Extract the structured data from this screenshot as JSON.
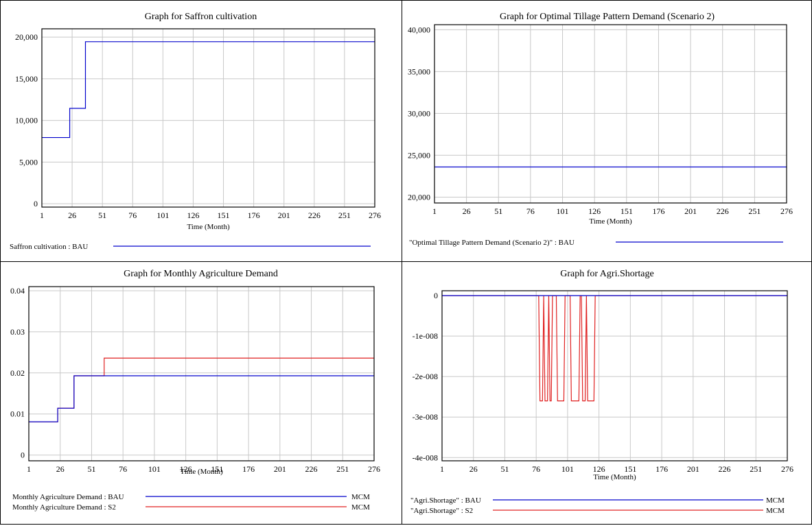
{
  "panels": [
    {
      "id": "p1",
      "chart_data": {
        "type": "line",
        "title": "Graph for Saffron cultivation",
        "xlabel": "Time (Month)",
        "ylabel": "",
        "x_ticks": [
          "1",
          "26",
          "51",
          "76",
          "101",
          "126",
          "151",
          "176",
          "201",
          "226",
          "251",
          "276"
        ],
        "y_ticks": [
          "0",
          "5,000",
          "10,000",
          "15,000",
          "20,000"
        ],
        "y_tick_values": [
          0,
          5000,
          10000,
          15000,
          20000
        ],
        "xlim": [
          1,
          276
        ],
        "ylim": [
          -400,
          21000
        ],
        "grid": true,
        "legend_position": "bottom",
        "series": [
          {
            "name": "Saffron cultivation : BAU",
            "unit": "",
            "color": "#0000cc",
            "points": [
              [
                1,
                7950
              ],
              [
                24,
                7950
              ],
              [
                24,
                11450
              ],
              [
                37,
                11450
              ],
              [
                37,
                19450
              ],
              [
                276,
                19450
              ]
            ]
          }
        ]
      }
    },
    {
      "id": "p2",
      "chart_data": {
        "type": "line",
        "title": "Graph for Optimal Tillage Pattern Demand (Scenario 2)",
        "xlabel": "Time (Month)",
        "ylabel": "",
        "x_ticks": [
          "1",
          "26",
          "51",
          "76",
          "101",
          "126",
          "151",
          "176",
          "201",
          "226",
          "251",
          "276"
        ],
        "y_ticks": [
          "20,000",
          "25,000",
          "30,000",
          "35,000",
          "40,000"
        ],
        "y_tick_values": [
          20000,
          25000,
          30000,
          35000,
          40000
        ],
        "xlim": [
          1,
          276
        ],
        "ylim": [
          19300,
          40600
        ],
        "grid": true,
        "legend_position": "bottom",
        "series": [
          {
            "name": "\"Optimal Tillage Pattern Demand (Scenario 2)\" : BAU",
            "unit": "",
            "color": "#0000cc",
            "points": [
              [
                1,
                23600
              ],
              [
                276,
                23600
              ]
            ]
          }
        ]
      }
    },
    {
      "id": "p3",
      "chart_data": {
        "type": "line",
        "title": "Graph for Monthly Agriculture Demand",
        "xlabel": "Time (Month)",
        "ylabel": "",
        "x_ticks": [
          "1",
          "26",
          "51",
          "76",
          "101",
          "126",
          "151",
          "176",
          "201",
          "226",
          "251",
          "276"
        ],
        "y_ticks": [
          "0",
          "0.01",
          "0.02",
          "0.03",
          "0.04"
        ],
        "y_tick_values": [
          0,
          0.01,
          0.02,
          0.03,
          0.04
        ],
        "xlim": [
          1,
          276
        ],
        "ylim": [
          -0.0014,
          0.041
        ],
        "grid": true,
        "legend_position": "bottom",
        "series": [
          {
            "name": "Monthly Agriculture Demand : S2",
            "unit": "MCM",
            "color": "#e02020",
            "points": [
              [
                1,
                0.0081
              ],
              [
                24,
                0.0081
              ],
              [
                24,
                0.0114
              ],
              [
                37,
                0.0114
              ],
              [
                37,
                0.0193
              ],
              [
                61,
                0.0193
              ],
              [
                61,
                0.0236
              ],
              [
                276,
                0.0236
              ]
            ]
          },
          {
            "name": "Monthly Agriculture Demand : BAU",
            "unit": "MCM",
            "color": "#0000cc",
            "points": [
              [
                1,
                0.0081
              ],
              [
                24,
                0.0081
              ],
              [
                24,
                0.0114
              ],
              [
                37,
                0.0114
              ],
              [
                37,
                0.0193
              ],
              [
                276,
                0.0193
              ]
            ]
          }
        ]
      }
    },
    {
      "id": "p4",
      "chart_data": {
        "type": "line",
        "title": "Graph for Agri.Shortage",
        "xlabel": "Time (Month)",
        "ylabel": "",
        "x_ticks": [
          "1",
          "26",
          "51",
          "76",
          "101",
          "126",
          "151",
          "176",
          "201",
          "226",
          "251",
          "276"
        ],
        "y_ticks": [
          "-4e-008",
          "-3e-008",
          "-2e-008",
          "-1e-008",
          "0"
        ],
        "y_tick_values": [
          -4e-08,
          -3e-08,
          -2e-08,
          -1e-08,
          0
        ],
        "xlim": [
          1,
          276
        ],
        "ylim": [
          -4.08e-08,
          1.2e-09
        ],
        "grid": true,
        "legend_position": "bottom",
        "series": [
          {
            "name": "\"Agri.Shortage\" : S2",
            "unit": "MCM",
            "color": "#e02020",
            "points": [
              [
                1,
                0
              ],
              [
                78,
                0
              ],
              [
                79,
                -2.6e-08
              ],
              [
                81,
                -2.6e-08
              ],
              [
                82,
                0
              ],
              [
                83,
                -2.6e-08
              ],
              [
                85,
                -2.6e-08
              ],
              [
                86,
                0
              ],
              [
                87,
                -2.6e-08
              ],
              [
                88,
                -2.6e-08
              ],
              [
                89,
                0
              ],
              [
                92,
                0
              ],
              [
                93,
                -2.6e-08
              ],
              [
                98,
                -2.6e-08
              ],
              [
                99,
                0
              ],
              [
                103,
                0
              ],
              [
                104,
                -2.6e-08
              ],
              [
                110,
                -2.6e-08
              ],
              [
                111,
                0
              ],
              [
                112,
                0
              ],
              [
                113,
                -2.6e-08
              ],
              [
                115,
                -2.6e-08
              ],
              [
                116,
                0
              ],
              [
                117,
                -2.6e-08
              ],
              [
                122,
                -2.6e-08
              ],
              [
                123,
                0
              ],
              [
                276,
                0
              ]
            ]
          },
          {
            "name": "\"Agri.Shortage\" : BAU",
            "unit": "MCM",
            "color": "#0000cc",
            "points": [
              [
                1,
                0
              ],
              [
                276,
                0
              ]
            ]
          }
        ]
      }
    }
  ]
}
